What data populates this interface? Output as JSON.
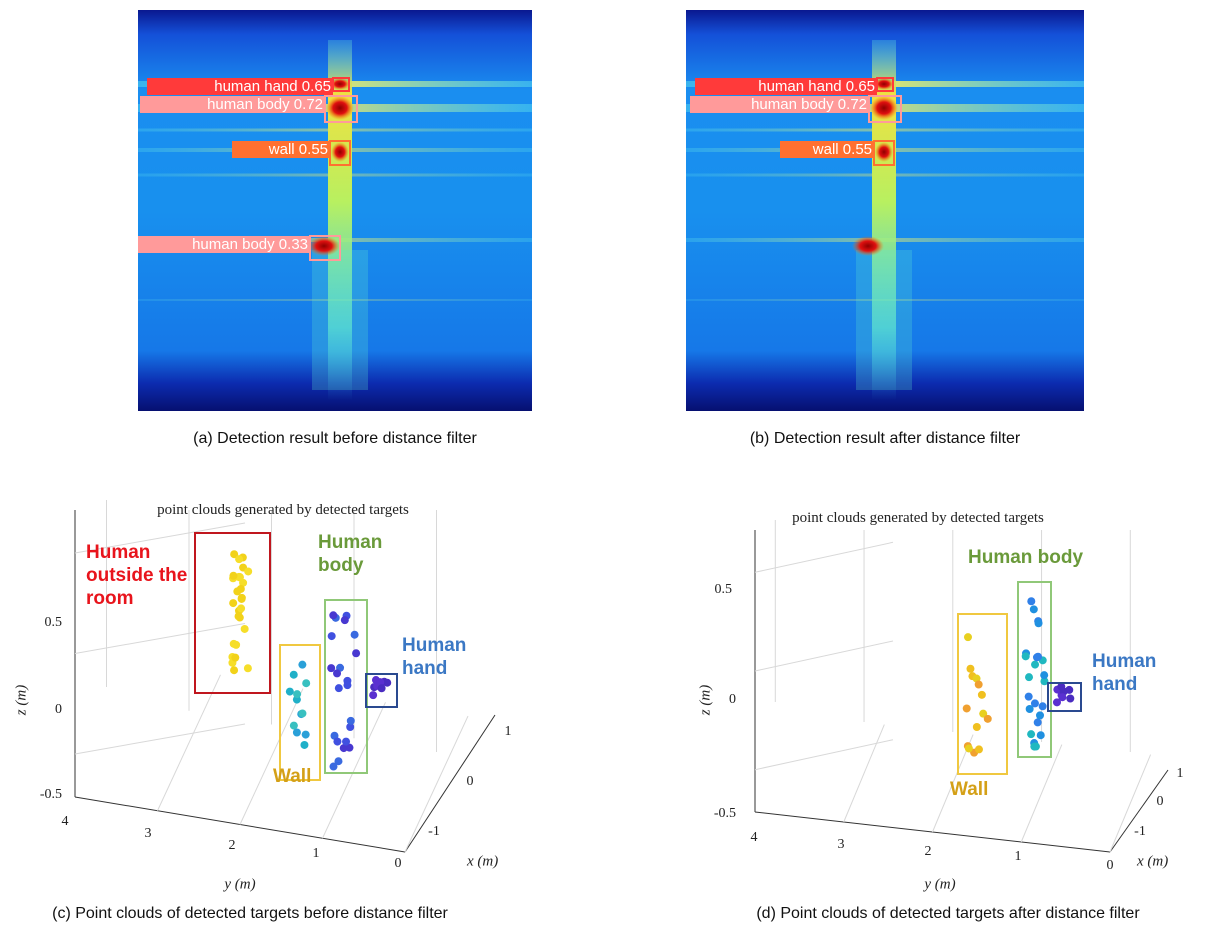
{
  "panels": [
    {
      "caption": "(a) Detection result before distance filter",
      "detections": [
        "human hand 0.65",
        "human body 0.72",
        "wall 0.55",
        "human body 0.33"
      ]
    },
    {
      "caption": "(b) Detection result after distance filter",
      "detections": [
        "human hand 0.65",
        "human body 0.72",
        "wall 0.55"
      ]
    },
    {
      "caption": "(c) Point clouds of detected targets before distance filter",
      "title": "point clouds generated by detected targets",
      "annotations": [
        "Human outside the room",
        "Human body",
        "Human hand",
        "Wall"
      ],
      "z_label": "z (m)",
      "y_label": "y (m)",
      "x_label": "x (m)",
      "z_ticks": [
        "0.5",
        "0",
        "-0.5"
      ],
      "y_ticks": [
        "4",
        "3",
        "2",
        "1",
        "0"
      ],
      "x_ticks": [
        "1",
        "0",
        "-1"
      ]
    },
    {
      "caption": "(d) Point clouds of detected targets after distance filter",
      "title": "point clouds generated by detected targets",
      "annotations": [
        "Human body",
        "Human hand",
        "Wall"
      ],
      "z_label": "z (m)",
      "y_label": "y (m)",
      "x_label": "x (m)",
      "z_ticks": [
        "0.5",
        "0",
        "-0.5"
      ],
      "y_ticks": [
        "4",
        "3",
        "2",
        "1",
        "0"
      ],
      "x_ticks": [
        "1",
        "0",
        "-1"
      ]
    }
  ]
}
